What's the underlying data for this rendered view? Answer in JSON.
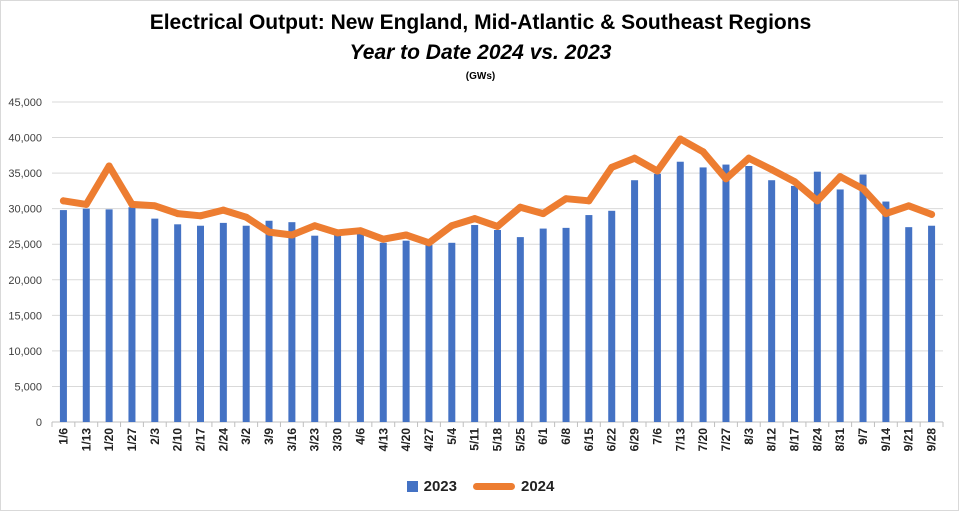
{
  "chart_data": {
    "type": "bar",
    "title": "Electrical Output:  New England, Mid-Atlantic & Southeast Regions",
    "subtitle": "Year to Date 2024 vs. 2023",
    "units_label": "(GWs)",
    "xlabel": "",
    "ylabel": "",
    "ylim": [
      0,
      45000
    ],
    "yticks": [
      "0",
      "5,000",
      "10,000",
      "15,000",
      "20,000",
      "25,000",
      "30,000",
      "35,000",
      "40,000",
      "45,000"
    ],
    "grid": true,
    "legend_position": "bottom",
    "categories": [
      "1/6",
      "1/13",
      "1/20",
      "1/27",
      "2/3",
      "2/10",
      "2/17",
      "2/24",
      "3/2",
      "3/9",
      "3/16",
      "3/23",
      "3/30",
      "4/6",
      "4/13",
      "4/20",
      "4/27",
      "5/4",
      "5/11",
      "5/18",
      "5/25",
      "6/1",
      "6/8",
      "6/15",
      "6/22",
      "6/29",
      "7/6",
      "7/13",
      "7/20",
      "7/27",
      "8/3",
      "8/12",
      "8/17",
      "8/24",
      "8/31",
      "9/7",
      "9/14",
      "9/21",
      "9/28"
    ],
    "series": [
      {
        "name": "2023",
        "kind": "bar",
        "color": "#4472C4",
        "values": [
          29800,
          30000,
          29900,
          30200,
          28600,
          27800,
          27600,
          28000,
          27600,
          28300,
          28100,
          26200,
          26400,
          26700,
          25200,
          25500,
          24900,
          25200,
          27700,
          27000,
          26000,
          27200,
          27300,
          29100,
          29700,
          34000,
          34900,
          36600,
          35800,
          36200,
          36000,
          34000,
          33200,
          35200,
          32700,
          34800,
          31000,
          27400,
          27600
        ]
      },
      {
        "name": "2024",
        "kind": "line",
        "color": "#ED7D31",
        "values": [
          31100,
          30600,
          36000,
          30600,
          30400,
          29300,
          29000,
          29800,
          28800,
          26700,
          26300,
          27600,
          26600,
          26900,
          25700,
          26300,
          25200,
          27600,
          28600,
          27500,
          30200,
          29300,
          31400,
          31100,
          35800,
          37100,
          35300,
          39800,
          38000,
          34200,
          37100,
          35500,
          33800,
          31100,
          34500,
          32800,
          29300,
          30400,
          29200
        ]
      }
    ]
  }
}
